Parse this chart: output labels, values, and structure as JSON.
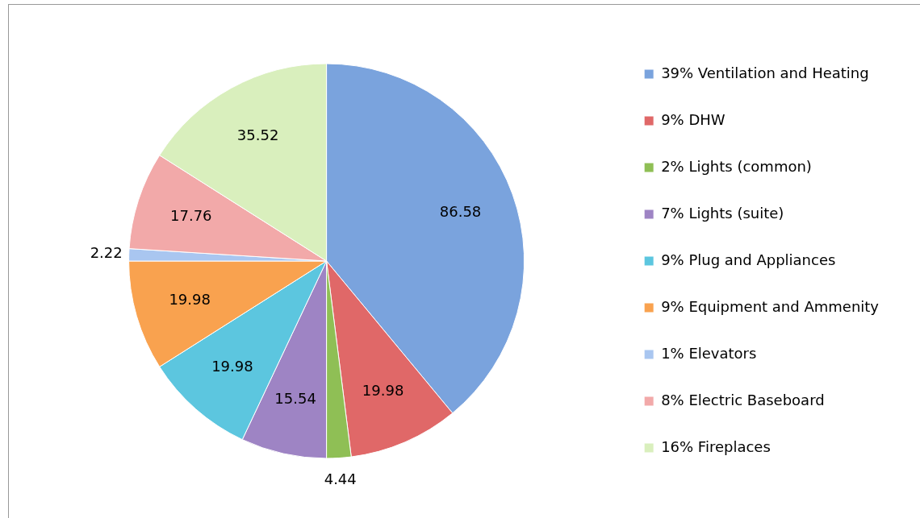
{
  "chart_data": {
    "type": "pie",
    "categories": [
      "39% Ventilation and Heating",
      "9% DHW",
      "2% Lights (common)",
      "7% Lights (suite)",
      "9% Plug and Appliances",
      "9% Equipment and Ammenity",
      "1% Elevators",
      "8% Electric Baseboard",
      "16% Fireplaces"
    ],
    "values": [
      86.58,
      19.98,
      4.44,
      15.54,
      19.98,
      19.98,
      2.22,
      17.76,
      35.52
    ],
    "colors": [
      "#7aa3dd",
      "#e06868",
      "#8fbf55",
      "#9e84c4",
      "#5cc6df",
      "#f9a24f",
      "#a9c6f0",
      "#f2a9a9",
      "#d9efbd"
    ],
    "data_labels": true,
    "legend": "right"
  }
}
